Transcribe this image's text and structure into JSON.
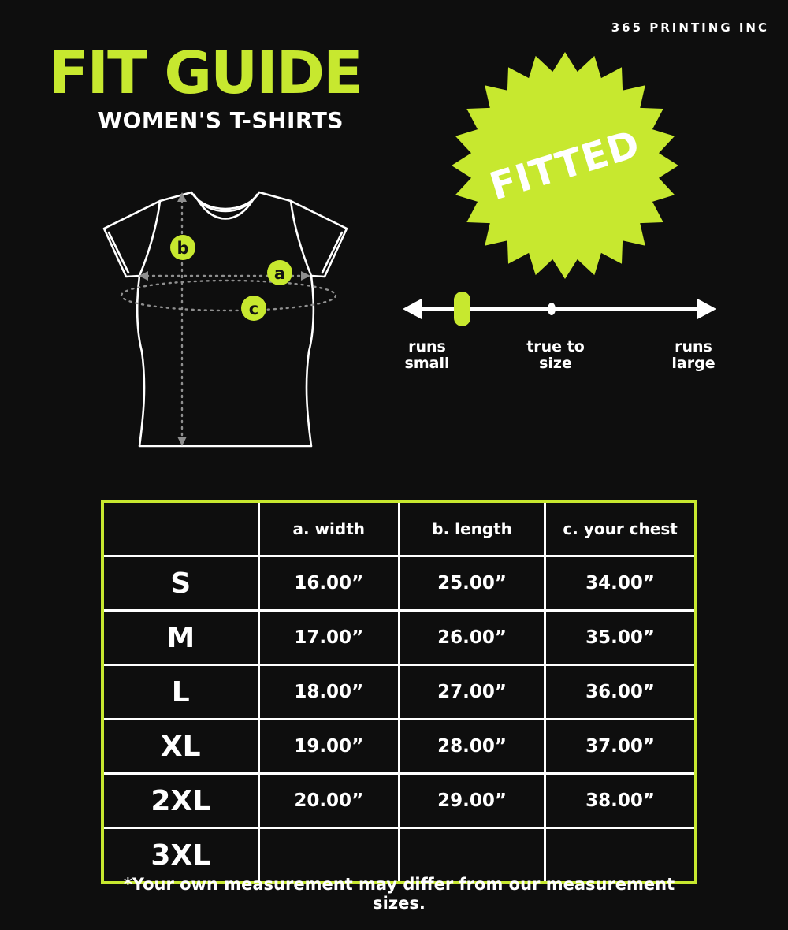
{
  "brand": "365 PRINTING INC",
  "title": "FIT GUIDE",
  "subtitle": "WOMEN'S T-SHIRTS",
  "badge_label": "FITTED",
  "fit_scale": {
    "left_label": "runs\nsmall",
    "center_label": "true to\nsize",
    "right_label": "runs\nlarge",
    "marker_at": "runs small"
  },
  "diagram": {
    "marker_a": "a",
    "marker_b": "b",
    "marker_c": "c"
  },
  "table": {
    "headers": [
      "",
      "a. width",
      "b. length",
      "c. your chest"
    ],
    "rows": [
      [
        "S",
        "16.00”",
        "25.00”",
        "34.00”"
      ],
      [
        "M",
        "17.00”",
        "26.00”",
        "35.00”"
      ],
      [
        "L",
        "18.00”",
        "27.00”",
        "36.00”"
      ],
      [
        "XL",
        "19.00”",
        "28.00”",
        "37.00”"
      ],
      [
        "2XL",
        "20.00”",
        "29.00”",
        "38.00”"
      ],
      [
        "3XL",
        "",
        "",
        ""
      ]
    ]
  },
  "footnote": "*Your own measurement may differ from our measurement sizes.",
  "colors": {
    "accent": "#c7e82f",
    "background": "#0e0e0e",
    "text": "#ffffff"
  }
}
